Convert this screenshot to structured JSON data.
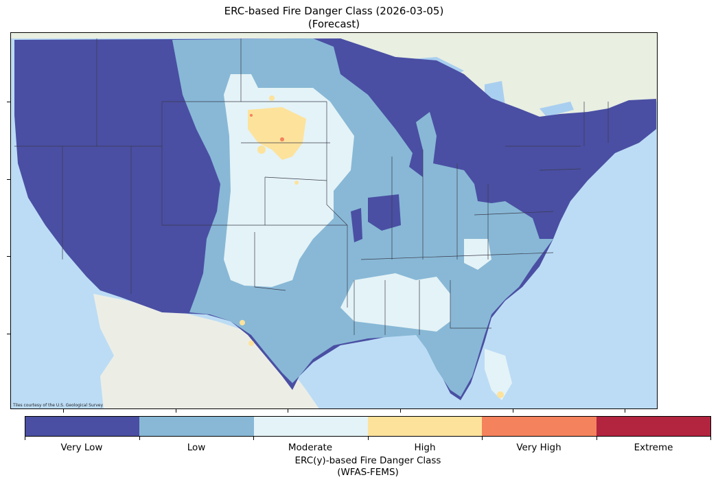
{
  "title_line1": "ERC-based Fire Danger Class (2026-03-05)",
  "title_line2": "(Forecast)",
  "attribution": "Tiles courtesy of the U.S. Geological Survey",
  "colorbar": {
    "label_line1": "ERC(y)-based Fire Danger Class",
    "label_line2": "(WFAS-FEMS)",
    "classes": [
      {
        "label": "Very Low",
        "color": "#4a4fa3"
      },
      {
        "label": "Low",
        "color": "#88b8d6"
      },
      {
        "label": "Moderate",
        "color": "#e4f3f7"
      },
      {
        "label": "High",
        "color": "#fde29c"
      },
      {
        "label": "Very High",
        "color": "#f4825d"
      },
      {
        "label": "Extreme",
        "color": "#b3243f"
      }
    ]
  },
  "map_colors": {
    "ocean": "#bcdcf5",
    "land": "#e9efe1",
    "mexico": "#eceee6",
    "lakes": "#a9cff0",
    "boundary": "#3a3a4a"
  }
}
